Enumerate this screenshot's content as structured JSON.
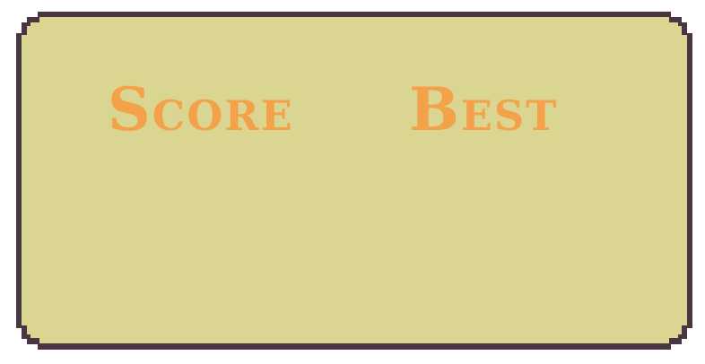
{
  "scoreboard": {
    "score_label": "Score",
    "best_label": "Best"
  },
  "colors": {
    "panel_fill": "#dbd592",
    "panel_border": "#4a3642",
    "label_text": "#f4a24a"
  }
}
